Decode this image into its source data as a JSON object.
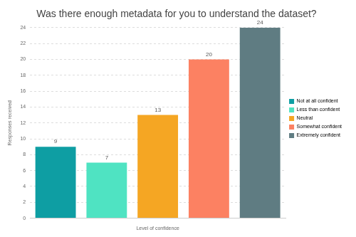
{
  "chart_data": {
    "type": "bar",
    "title": "Was there enough metadata for you to understand the dataset?",
    "x_label": "Level of confidence",
    "y_label": "Responses received",
    "categories": [
      "Not at all confident",
      "Less than confident",
      "Neutral",
      "Somewhat confident",
      "Extremely confident"
    ],
    "values": [
      9,
      7,
      13,
      20,
      24
    ],
    "colors": [
      "#0e9ea3",
      "#4fe3c2",
      "#f5a623",
      "#fc8162",
      "#5f7c82"
    ],
    "ylim": [
      0,
      24
    ],
    "yticks": [
      0,
      2,
      4,
      6,
      8,
      10,
      12,
      14,
      16,
      18,
      20,
      22,
      24
    ],
    "grid": true,
    "legend": "right",
    "data_labels": true,
    "tick_labels": "y"
  }
}
